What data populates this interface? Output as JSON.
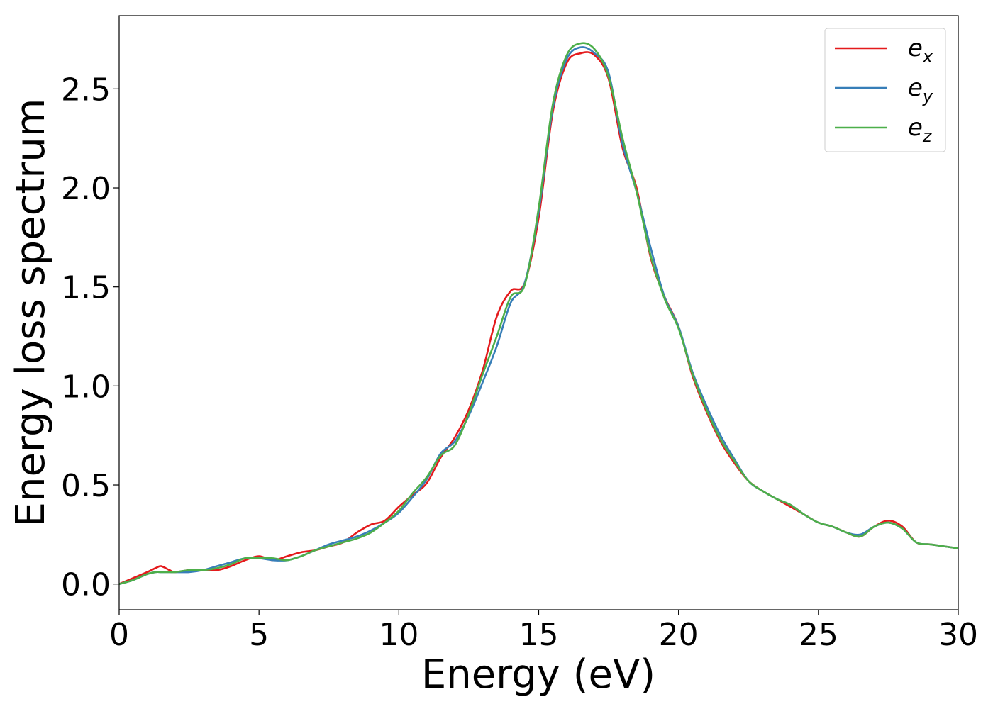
{
  "chart_data": {
    "type": "line",
    "title": "",
    "xlabel": "Energy (eV)",
    "ylabel": "Energy loss spectrum",
    "xlim": [
      0,
      30
    ],
    "ylim": [
      -0.13,
      2.87
    ],
    "xticks": [
      0,
      5,
      10,
      15,
      20,
      25,
      30
    ],
    "xtick_labels": [
      "0",
      "5",
      "10",
      "15",
      "20",
      "25",
      "30"
    ],
    "yticks": [
      0.0,
      0.5,
      1.0,
      1.5,
      2.0,
      2.5
    ],
    "ytick_labels": [
      "0.0",
      "0.5",
      "1.0",
      "1.5",
      "2.0",
      "2.5"
    ],
    "grid": false,
    "legend_position": "top-right",
    "series": [
      {
        "name": "e_x",
        "legend_base": "e",
        "legend_sub": "x",
        "color": "#e41a1c",
        "x": [
          0,
          0.5,
          1.0,
          1.3,
          1.5,
          1.8,
          2.0,
          2.5,
          3.0,
          3.5,
          4.0,
          4.5,
          5.0,
          5.5,
          6.0,
          6.5,
          7.0,
          7.5,
          8.0,
          8.5,
          9.0,
          9.5,
          10.0,
          10.5,
          11.0,
          11.5,
          12.0,
          12.5,
          13.0,
          13.5,
          14.0,
          14.5,
          15.0,
          15.5,
          16.0,
          16.5,
          17.0,
          17.5,
          18.0,
          18.5,
          19.0,
          19.5,
          20.0,
          20.5,
          21.0,
          21.5,
          22.0,
          22.5,
          23.0,
          23.5,
          24.0,
          24.5,
          25.0,
          25.5,
          26.0,
          26.5,
          27.0,
          27.5,
          28.0,
          28.5,
          29.0,
          29.5,
          30.0
        ],
        "y": [
          0.0,
          0.03,
          0.06,
          0.08,
          0.09,
          0.07,
          0.06,
          0.07,
          0.07,
          0.07,
          0.09,
          0.12,
          0.14,
          0.12,
          0.14,
          0.16,
          0.17,
          0.19,
          0.21,
          0.26,
          0.3,
          0.32,
          0.39,
          0.45,
          0.51,
          0.64,
          0.74,
          0.88,
          1.08,
          1.35,
          1.48,
          1.52,
          1.85,
          2.38,
          2.63,
          2.68,
          2.67,
          2.55,
          2.2,
          2.0,
          1.65,
          1.45,
          1.3,
          1.05,
          0.87,
          0.72,
          0.61,
          0.52,
          0.47,
          0.43,
          0.39,
          0.35,
          0.31,
          0.29,
          0.26,
          0.24,
          0.29,
          0.32,
          0.29,
          0.21,
          0.2,
          0.19,
          0.18
        ]
      },
      {
        "name": "e_y",
        "legend_base": "e",
        "legend_sub": "y",
        "color": "#377eb8",
        "x": [
          0,
          0.5,
          1.0,
          1.3,
          1.5,
          1.8,
          2.0,
          2.5,
          3.0,
          3.5,
          4.0,
          4.5,
          5.0,
          5.5,
          6.0,
          6.5,
          7.0,
          7.5,
          8.0,
          8.5,
          9.0,
          9.5,
          10.0,
          10.5,
          11.0,
          11.5,
          12.0,
          12.5,
          13.0,
          13.5,
          14.0,
          14.5,
          15.0,
          15.5,
          16.0,
          16.5,
          17.0,
          17.5,
          18.0,
          18.5,
          19.0,
          19.5,
          20.0,
          20.5,
          21.0,
          21.5,
          22.0,
          22.5,
          23.0,
          23.5,
          24.0,
          24.5,
          25.0,
          25.5,
          26.0,
          26.5,
          27.0,
          27.5,
          28.0,
          28.5,
          29.0,
          29.5,
          30.0
        ],
        "y": [
          0.0,
          0.02,
          0.05,
          0.06,
          0.06,
          0.06,
          0.06,
          0.06,
          0.07,
          0.09,
          0.11,
          0.13,
          0.13,
          0.12,
          0.12,
          0.14,
          0.17,
          0.2,
          0.22,
          0.24,
          0.27,
          0.31,
          0.36,
          0.44,
          0.53,
          0.66,
          0.72,
          0.85,
          1.02,
          1.2,
          1.42,
          1.52,
          1.88,
          2.4,
          2.65,
          2.71,
          2.68,
          2.58,
          2.22,
          1.98,
          1.7,
          1.45,
          1.3,
          1.07,
          0.9,
          0.75,
          0.63,
          0.52,
          0.47,
          0.43,
          0.4,
          0.35,
          0.31,
          0.29,
          0.26,
          0.25,
          0.29,
          0.31,
          0.28,
          0.21,
          0.2,
          0.19,
          0.18
        ]
      },
      {
        "name": "e_z",
        "legend_base": "e",
        "legend_sub": "z",
        "color": "#4daf4a",
        "x": [
          0,
          0.5,
          1.0,
          1.3,
          1.5,
          1.8,
          2.0,
          2.5,
          3.0,
          3.5,
          4.0,
          4.5,
          5.0,
          5.5,
          6.0,
          6.5,
          7.0,
          7.5,
          8.0,
          8.5,
          9.0,
          9.5,
          10.0,
          10.5,
          11.0,
          11.5,
          12.0,
          12.5,
          13.0,
          13.5,
          14.0,
          14.5,
          15.0,
          15.5,
          16.0,
          16.5,
          17.0,
          17.5,
          18.0,
          18.5,
          19.0,
          19.5,
          20.0,
          20.5,
          21.0,
          21.5,
          22.0,
          22.5,
          23.0,
          23.5,
          24.0,
          24.5,
          25.0,
          25.5,
          26.0,
          26.5,
          27.0,
          27.5,
          28.0,
          28.5,
          29.0,
          29.5,
          30.0
        ],
        "y": [
          0.0,
          0.02,
          0.05,
          0.06,
          0.06,
          0.06,
          0.06,
          0.07,
          0.07,
          0.08,
          0.1,
          0.13,
          0.13,
          0.13,
          0.12,
          0.14,
          0.17,
          0.19,
          0.21,
          0.23,
          0.26,
          0.31,
          0.37,
          0.46,
          0.54,
          0.65,
          0.7,
          0.86,
          1.06,
          1.25,
          1.45,
          1.51,
          1.9,
          2.42,
          2.67,
          2.73,
          2.7,
          2.56,
          2.25,
          1.98,
          1.66,
          1.44,
          1.29,
          1.06,
          0.88,
          0.73,
          0.62,
          0.52,
          0.47,
          0.43,
          0.4,
          0.35,
          0.31,
          0.29,
          0.26,
          0.24,
          0.29,
          0.31,
          0.28,
          0.21,
          0.2,
          0.19,
          0.18
        ]
      }
    ]
  }
}
